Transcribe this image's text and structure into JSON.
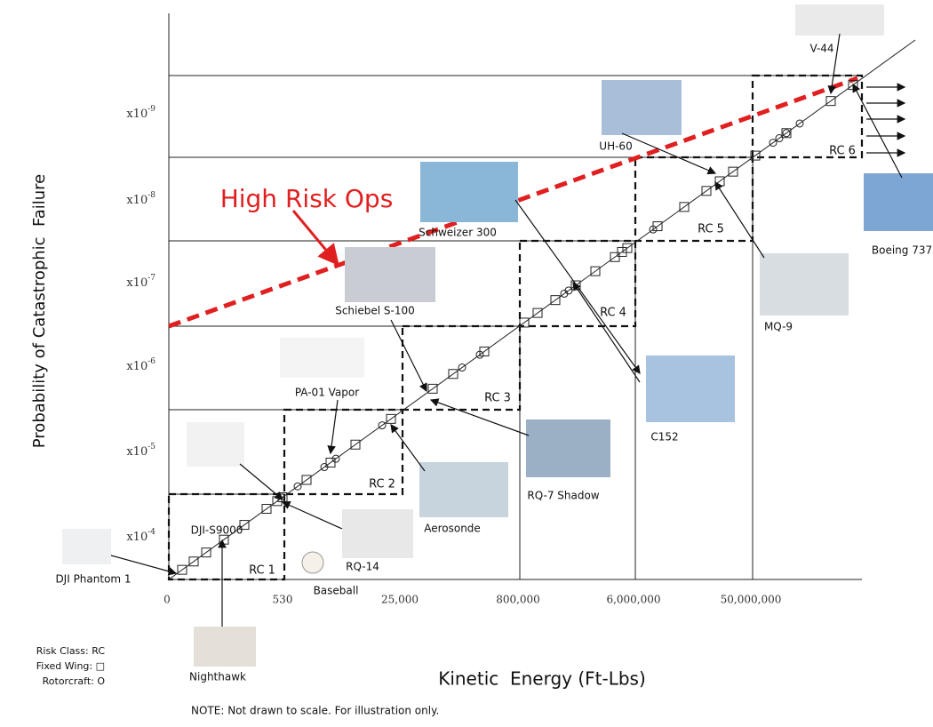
{
  "y_axis": {
    "title": "Probability of Catastrophic  Failure",
    "labels": [
      {
        "base": "x10",
        "exp": "-9"
      },
      {
        "base": "x10",
        "exp": "-8"
      },
      {
        "base": "x10",
        "exp": "-7"
      },
      {
        "base": "x10",
        "exp": "-6"
      },
      {
        "base": "x10",
        "exp": "-5"
      },
      {
        "base": "x10",
        "exp": "-4"
      }
    ]
  },
  "x_axis": {
    "title": "Kinetic  Energy (Ft-Lbs)",
    "labels": [
      "0",
      "530",
      "25,000",
      "800,000",
      "6,000,000",
      "50,000,000"
    ]
  },
  "risk_classes": [
    "RC 1",
    "RC 2",
    "RC 3",
    "RC 4",
    "RC 5",
    "RC 6"
  ],
  "aircraft": [
    "DJI Phantom 1",
    "Nighthawk",
    "DJI-S9000",
    "PA-01 Vapor",
    "Schiebel S-100",
    "Schweizer 300",
    "UH-60",
    "V-44",
    "Boeing 737",
    "MQ-9",
    "C152",
    "RQ-7 Shadow",
    "Aerosonde",
    "RQ-14",
    "Baseball"
  ],
  "high_risk_label": "High Risk Ops",
  "legend": [
    "Risk Class: RC",
    "Fixed Wing: □",
    "Rotorcraft: O"
  ],
  "note": "NOTE: Not drawn to scale. For illustration only."
}
